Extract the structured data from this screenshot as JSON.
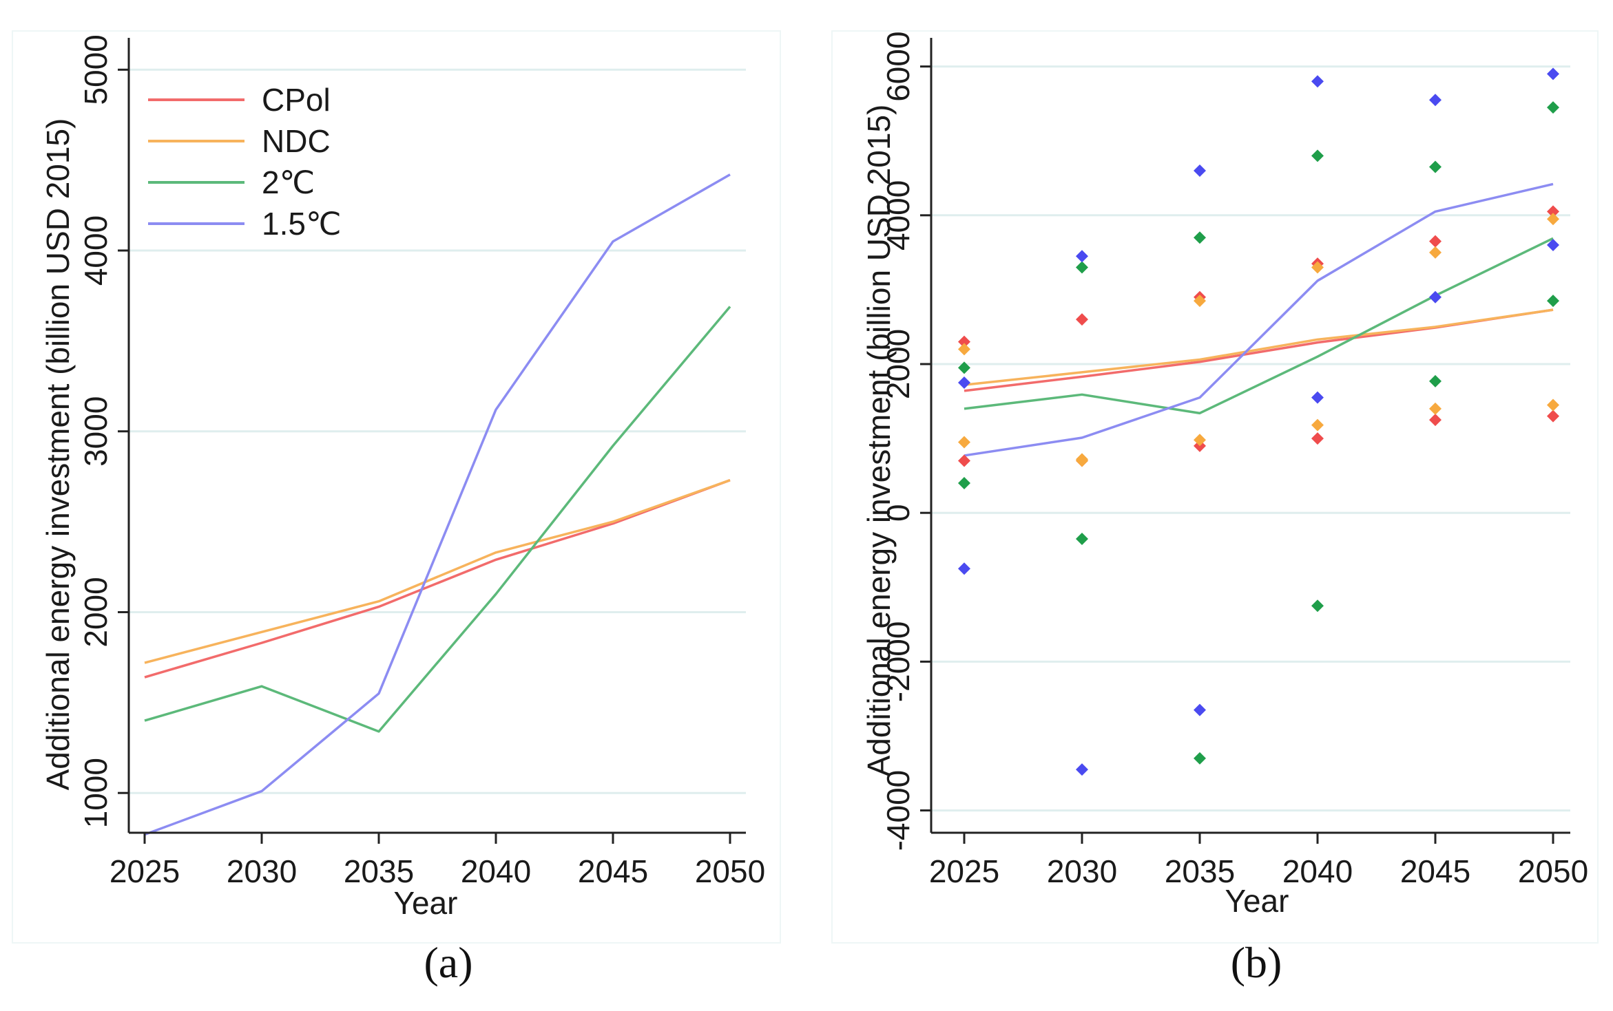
{
  "colors": {
    "CPol": "#f26b6b",
    "NDC": "#f7b35c",
    "2℃": "#5cb97a",
    "1.5℃": "#8c8cf2",
    "CPol_dot": "#ef4c4c",
    "NDC_dot": "#f7a93e",
    "2℃_dot": "#1f9e4a",
    "1.5℃_dot": "#4a4af0",
    "grid": "#dfeeee",
    "axis": "#222222"
  },
  "chart_data": [
    {
      "type": "line",
      "caption": "(a)",
      "xlabel": "Year",
      "ylabel": "Additional energy investment (billion USD 2015)",
      "x": [
        2025,
        2030,
        2035,
        2040,
        2045,
        2050
      ],
      "xticks": [
        "2025",
        "2030",
        "2035",
        "2040",
        "2045",
        "2050"
      ],
      "yticks": [
        1000,
        2000,
        3000,
        4000,
        5000
      ],
      "ytick_labels": [
        "1000",
        "2000",
        "3000",
        "4000",
        "5000"
      ],
      "ylim": [
        780,
        5100
      ],
      "legend": [
        "CPol",
        "NDC",
        "2℃",
        "1.5℃"
      ],
      "series": [
        {
          "name": "CPol",
          "values": [
            1640,
            1830,
            2030,
            2290,
            2490,
            2730
          ]
        },
        {
          "name": "NDC",
          "values": [
            1720,
            1890,
            2060,
            2330,
            2500,
            2730
          ]
        },
        {
          "name": "2℃",
          "values": [
            1400,
            1590,
            1340,
            2100,
            2920,
            3690
          ]
        },
        {
          "name": "1.5℃",
          "values": [
            770,
            1010,
            1550,
            3120,
            4050,
            4420
          ]
        }
      ]
    },
    {
      "type": "scatter",
      "caption": "(b)",
      "xlabel": "Year",
      "ylabel": "Additional energy investment (billion USD 2015)",
      "x": [
        2025,
        2030,
        2035,
        2040,
        2045,
        2050
      ],
      "xticks": [
        "2025",
        "2030",
        "2035",
        "2040",
        "2045",
        "2050"
      ],
      "yticks": [
        -4000,
        -2000,
        0,
        2000,
        4000,
        6000
      ],
      "ytick_labels": [
        "-4000",
        "-2000",
        "0",
        "2000",
        "4000",
        "6000"
      ],
      "ylim": [
        -4300,
        6200
      ],
      "series": [
        {
          "name": "CPol",
          "values": [
            1640,
            1830,
            2030,
            2290,
            2490,
            2730
          ]
        },
        {
          "name": "NDC",
          "values": [
            1720,
            1890,
            2060,
            2330,
            2500,
            2730
          ]
        },
        {
          "name": "2℃",
          "values": [
            1400,
            1590,
            1340,
            2100,
            2920,
            3690
          ]
        },
        {
          "name": "1.5℃",
          "values": [
            770,
            1010,
            1550,
            3120,
            4050,
            4420
          ]
        }
      ],
      "points": [
        {
          "name": "CPol",
          "high": [
            2300,
            2600,
            2900,
            3350,
            3650,
            4050
          ],
          "low": [
            700,
            700,
            900,
            1000,
            1250,
            1300
          ]
        },
        {
          "name": "NDC",
          "high": [
            2200,
            720,
            2850,
            3300,
            3500,
            3950
          ],
          "low": [
            950,
            700,
            980,
            1180,
            1400,
            1450
          ]
        },
        {
          "name": "2℃",
          "high": [
            1950,
            3300,
            3700,
            4800,
            4650,
            5450
          ],
          "low": [
            400,
            -350,
            -3300,
            -1250,
            1770,
            2850
          ]
        },
        {
          "name": "1.5℃",
          "high": [
            1750,
            3450,
            4600,
            5800,
            5550,
            5900
          ],
          "low": [
            -750,
            -3450,
            -2650,
            1550,
            2900,
            3600
          ]
        }
      ]
    }
  ]
}
